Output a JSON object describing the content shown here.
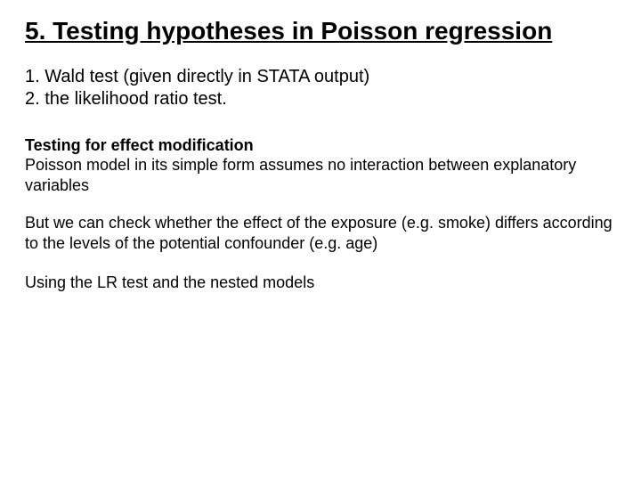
{
  "colors": {
    "background": "#ffffff",
    "text": "#000000"
  },
  "typography": {
    "family": "Comic Sans MS",
    "title_size_pt": 28,
    "title_weight": "bold",
    "title_underline": true,
    "list_size_pt": 20,
    "body_size_pt": 18,
    "subhead_weight": "bold"
  },
  "title": "5. Testing hypotheses in Poisson regression",
  "list": {
    "item1": "1. Wald test (given directly in STATA output)",
    "item2": "2. the likelihood ratio test."
  },
  "section": {
    "subhead": "Testing for effect modification",
    "p1": "Poisson model in its simple form assumes no interaction between explanatory variables",
    "p2": "But we can check whether the effect of the exposure (e.g. smoke) differs according to the levels of the potential confounder (e.g. age)",
    "p3": "Using the LR test and the nested models"
  }
}
